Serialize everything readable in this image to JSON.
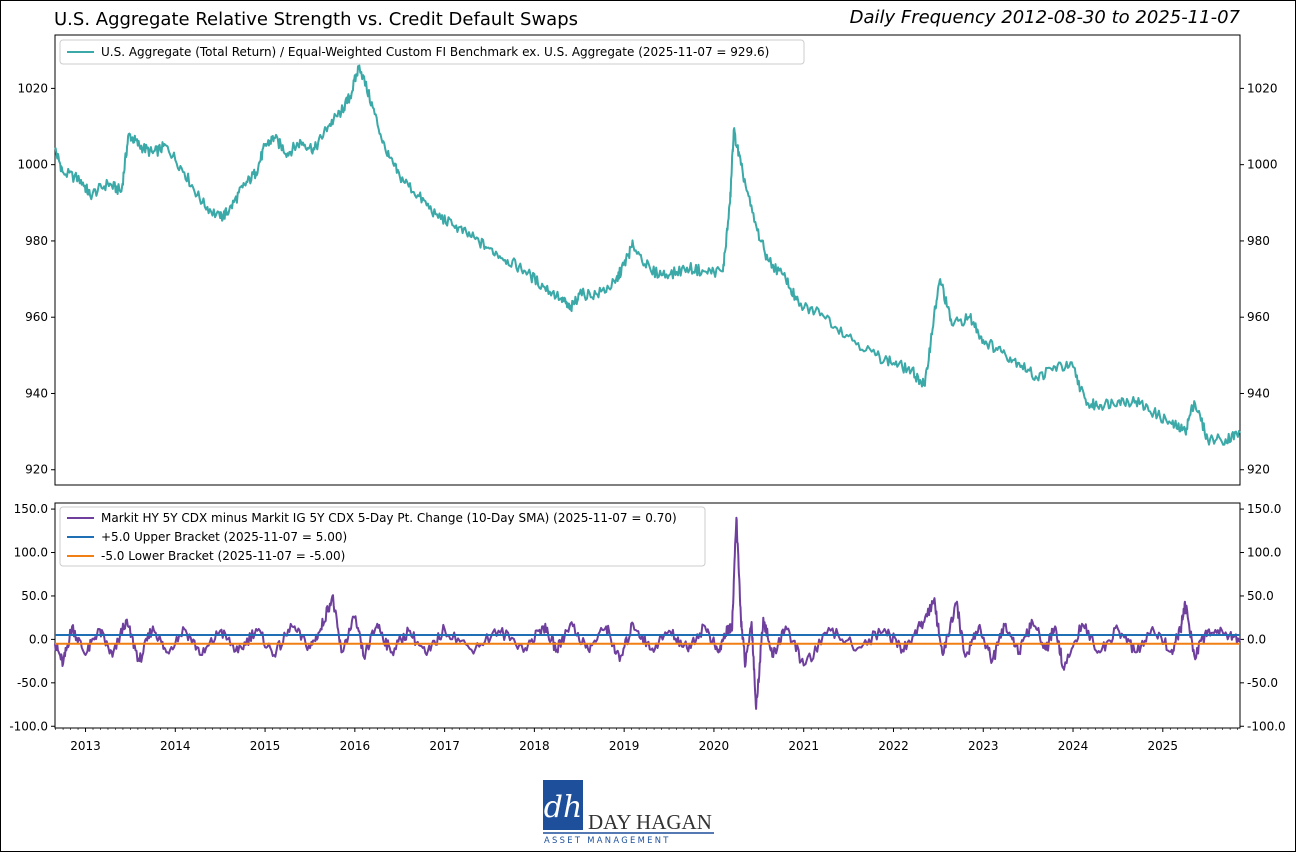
{
  "header": {
    "title": "U.S. Aggregate Relative Strength vs. Credit Default Swaps",
    "subtitle": "Daily Frequency 2012-08-30 to 2025-11-07"
  },
  "logo": {
    "brand": "DAY HAGAN",
    "tagline": "ASSET MANAGEMENT",
    "monogram": "dh"
  },
  "colors": {
    "series_top": "#3aa9a8",
    "series_bottom": "#6f3f9e",
    "upper_bracket": "#1f6fb4",
    "lower_bracket": "#f07f14",
    "logo_blue": "#1d4f9a"
  },
  "chart_data": [
    {
      "type": "line",
      "title": "U.S. Aggregate Relative Strength",
      "x_range": [
        2012.66,
        2025.86
      ],
      "ylim": [
        916,
        1034
      ],
      "yticks": [
        920,
        940,
        960,
        980,
        1000,
        1020
      ],
      "legend_position": "top-left",
      "series": [
        {
          "name": "U.S. Aggregate (Total Return) / Equal-Weighted Custom FI Benchmark ex. U.S. Aggregate (2025-11-07 = 929.6)",
          "x": [
            2012.66,
            2012.75,
            2012.95,
            2013.05,
            2013.25,
            2013.4,
            2013.48,
            2013.6,
            2013.75,
            2013.9,
            2014.1,
            2014.3,
            2014.5,
            2014.6,
            2014.75,
            2014.9,
            2015.0,
            2015.1,
            2015.25,
            2015.4,
            2015.55,
            2015.7,
            2015.85,
            2015.95,
            2016.05,
            2016.2,
            2016.35,
            2016.5,
            2016.7,
            2016.9,
            2017.1,
            2017.3,
            2017.5,
            2017.7,
            2017.9,
            2018.1,
            2018.3,
            2018.4,
            2018.5,
            2018.7,
            2018.9,
            2019.0,
            2019.1,
            2019.3,
            2019.5,
            2019.7,
            2019.9,
            2020.1,
            2020.18,
            2020.22,
            2020.3,
            2020.45,
            2020.6,
            2020.8,
            2020.95,
            2021.2,
            2021.5,
            2021.8,
            2022.0,
            2022.2,
            2022.35,
            2022.45,
            2022.52,
            2022.65,
            2022.85,
            2023.0,
            2023.2,
            2023.4,
            2023.6,
            2023.8,
            2024.0,
            2024.15,
            2024.3,
            2024.5,
            2024.7,
            2024.9,
            2025.1,
            2025.25,
            2025.35,
            2025.5,
            2025.7,
            2025.86
          ],
          "values": [
            1004,
            998,
            996,
            992,
            995,
            993,
            1008,
            1005,
            1003,
            1005,
            998,
            990,
            986,
            988,
            994,
            998,
            1005,
            1007,
            1003,
            1006,
            1004,
            1010,
            1014,
            1018,
            1026,
            1015,
            1003,
            997,
            992,
            987,
            984,
            981,
            978,
            975,
            972,
            968,
            965,
            962,
            966,
            966,
            969,
            974,
            979,
            972,
            971,
            973,
            972,
            972,
            990,
            1009,
            1000,
            985,
            975,
            970,
            963,
            961,
            955,
            950,
            948,
            946,
            942,
            960,
            970,
            958,
            960,
            954,
            951,
            948,
            944,
            947,
            947,
            937,
            937,
            938,
            938,
            935,
            932,
            930,
            938,
            928,
            928,
            929.6
          ]
        }
      ]
    },
    {
      "type": "line",
      "title": "Credit Default Swaps",
      "x_range": [
        2012.66,
        2025.86
      ],
      "ylim": [
        -102,
        157
      ],
      "yticks": [
        -100.0,
        -50.0,
        0.0,
        50.0,
        100.0,
        150.0
      ],
      "ytick_labels": [
        "-100.0",
        "-50.0",
        "0.0",
        "50.0",
        "100.0",
        "150.0"
      ],
      "legend_position": "top-left",
      "xticks": [
        2013,
        2014,
        2015,
        2016,
        2017,
        2018,
        2019,
        2020,
        2021,
        2022,
        2023,
        2024,
        2025
      ],
      "series": [
        {
          "name": "Markit HY 5Y CDX minus Markit IG 5Y CDX 5-Day Pt. Change (10-Day SMA) (2025-11-07 = 0.70)",
          "x": [
            2012.66,
            2012.75,
            2012.85,
            2013.0,
            2013.15,
            2013.3,
            2013.45,
            2013.6,
            2013.75,
            2013.9,
            2014.1,
            2014.3,
            2014.5,
            2014.7,
            2014.9,
            2015.1,
            2015.3,
            2015.5,
            2015.62,
            2015.75,
            2015.85,
            2016.0,
            2016.1,
            2016.25,
            2016.4,
            2016.6,
            2016.8,
            2017.0,
            2017.3,
            2017.6,
            2017.9,
            2018.1,
            2018.25,
            2018.4,
            2018.6,
            2018.8,
            2018.95,
            2019.1,
            2019.3,
            2019.5,
            2019.7,
            2019.9,
            2020.05,
            2020.15,
            2020.2,
            2020.25,
            2020.3,
            2020.35,
            2020.42,
            2020.47,
            2020.55,
            2020.65,
            2020.8,
            2021.0,
            2021.3,
            2021.6,
            2021.9,
            2022.1,
            2022.3,
            2022.45,
            2022.55,
            2022.7,
            2022.8,
            2022.95,
            2023.1,
            2023.25,
            2023.4,
            2023.55,
            2023.7,
            2023.8,
            2023.9,
            2024.1,
            2024.3,
            2024.5,
            2024.7,
            2024.9,
            2025.1,
            2025.2,
            2025.25,
            2025.35,
            2025.5,
            2025.7,
            2025.86
          ],
          "values": [
            -5,
            -28,
            15,
            -18,
            12,
            -20,
            22,
            -25,
            15,
            -15,
            12,
            -18,
            10,
            -15,
            12,
            -18,
            15,
            -10,
            12,
            50,
            -15,
            25,
            -20,
            18,
            -15,
            10,
            -18,
            12,
            -12,
            10,
            -10,
            15,
            -12,
            18,
            -12,
            15,
            -25,
            18,
            -12,
            10,
            -10,
            15,
            -15,
            12,
            10,
            140,
            25,
            -30,
            20,
            -80,
            25,
            -20,
            15,
            -30,
            10,
            -10,
            12,
            -12,
            15,
            45,
            -18,
            42,
            -20,
            15,
            -25,
            18,
            -15,
            20,
            -12,
            15,
            -35,
            18,
            -15,
            12,
            -15,
            10,
            -12,
            12,
            40,
            -18,
            10,
            8,
            0.7
          ]
        },
        {
          "name": "+5.0 Upper Bracket (2025-11-07 = 5.00)",
          "x": [
            2012.66,
            2025.86
          ],
          "values": [
            5,
            5
          ]
        },
        {
          "name": "-5.0 Lower Bracket (2025-11-07 = -5.00)",
          "x": [
            2012.66,
            2025.86
          ],
          "values": [
            -5,
            -5
          ]
        }
      ]
    }
  ]
}
